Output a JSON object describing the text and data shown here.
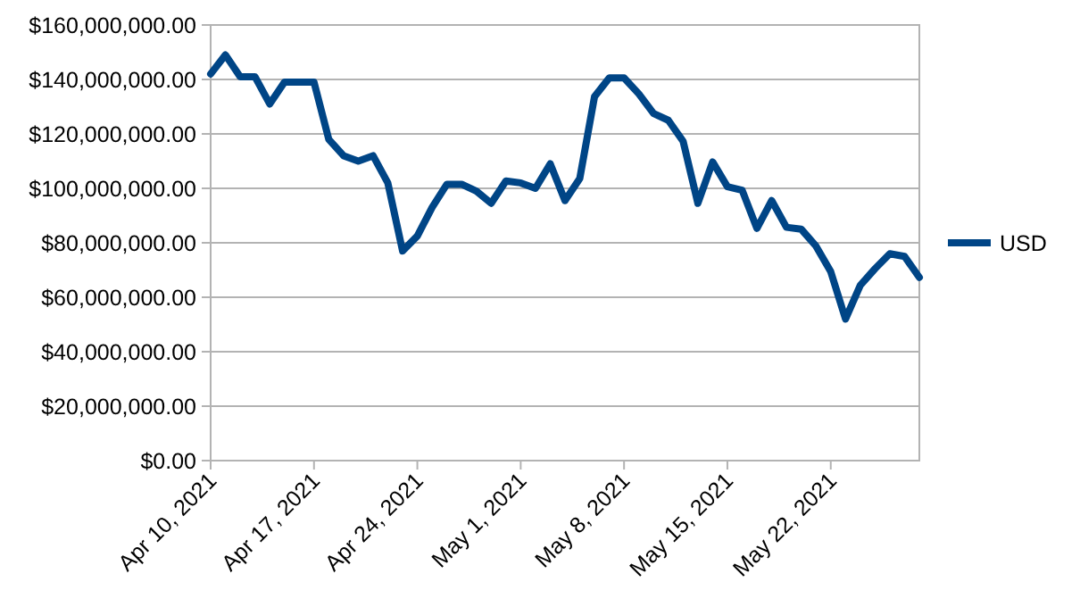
{
  "chart_data": {
    "type": "line",
    "xlim": [
      "2021-04-10",
      "2021-05-28"
    ],
    "xticks": [
      {
        "value": "2021-04-10",
        "label": "Apr 10, 2021"
      },
      {
        "value": "2021-04-17",
        "label": "Apr 17, 2021"
      },
      {
        "value": "2021-04-24",
        "label": "Apr 24, 2021"
      },
      {
        "value": "2021-05-01",
        "label": "May 1, 2021"
      },
      {
        "value": "2021-05-08",
        "label": "May 8, 2021"
      },
      {
        "value": "2021-05-15",
        "label": "May 15, 2021"
      },
      {
        "value": "2021-05-22",
        "label": "May 22, 2021"
      }
    ],
    "ylim": [
      0,
      160000000
    ],
    "yticks": [
      {
        "value": 0,
        "label": "$0.00"
      },
      {
        "value": 20000000,
        "label": "$20,000,000.00"
      },
      {
        "value": 40000000,
        "label": "$40,000,000.00"
      },
      {
        "value": 60000000,
        "label": "$60,000,000.00"
      },
      {
        "value": 80000000,
        "label": "$80,000,000.00"
      },
      {
        "value": 100000000,
        "label": "$100,000,000.00"
      },
      {
        "value": 120000000,
        "label": "$120,000,000.00"
      },
      {
        "value": 140000000,
        "label": "$140,000,000.00"
      },
      {
        "value": 160000000,
        "label": "$160,000,000.00"
      }
    ],
    "grid": "y",
    "legend": "right",
    "marker": "none",
    "line_style": "solid",
    "x": [
      "2021-04-10",
      "2021-04-11",
      "2021-04-12",
      "2021-04-13",
      "2021-04-14",
      "2021-04-15",
      "2021-04-16",
      "2021-04-17",
      "2021-04-18",
      "2021-04-19",
      "2021-04-20",
      "2021-04-21",
      "2021-04-22",
      "2021-04-23",
      "2021-04-24",
      "2021-04-25",
      "2021-04-26",
      "2021-04-27",
      "2021-04-28",
      "2021-04-29",
      "2021-04-30",
      "2021-05-01",
      "2021-05-02",
      "2021-05-03",
      "2021-05-04",
      "2021-05-05",
      "2021-05-06",
      "2021-05-07",
      "2021-05-08",
      "2021-05-09",
      "2021-05-10",
      "2021-05-11",
      "2021-05-12",
      "2021-05-13",
      "2021-05-14",
      "2021-05-15",
      "2021-05-16",
      "2021-05-17",
      "2021-05-18",
      "2021-05-19",
      "2021-05-20",
      "2021-05-21",
      "2021-05-22",
      "2021-05-23",
      "2021-05-24",
      "2021-05-25",
      "2021-05-26",
      "2021-05-27",
      "2021-05-28"
    ],
    "series": [
      {
        "name": "USD",
        "color": "#004586",
        "values": [
          142000000,
          149000000,
          141000000,
          141000000,
          131000000,
          139000000,
          139000000,
          139000000,
          118000000,
          112000000,
          110000000,
          112000000,
          102000000,
          77000000,
          82500000,
          93000000,
          101500000,
          101500000,
          99000000,
          94500000,
          102700000,
          102000000,
          100000000,
          109000000,
          95500000,
          103600000,
          133700000,
          140600000,
          140600000,
          134700000,
          127500000,
          125000000,
          117300000,
          94500000,
          109700000,
          100600000,
          99300000,
          85300000,
          95500000,
          85700000,
          85000000,
          78800000,
          69400000,
          52000000,
          64400000,
          70500000,
          76000000,
          75000000,
          67300000
        ]
      }
    ]
  }
}
